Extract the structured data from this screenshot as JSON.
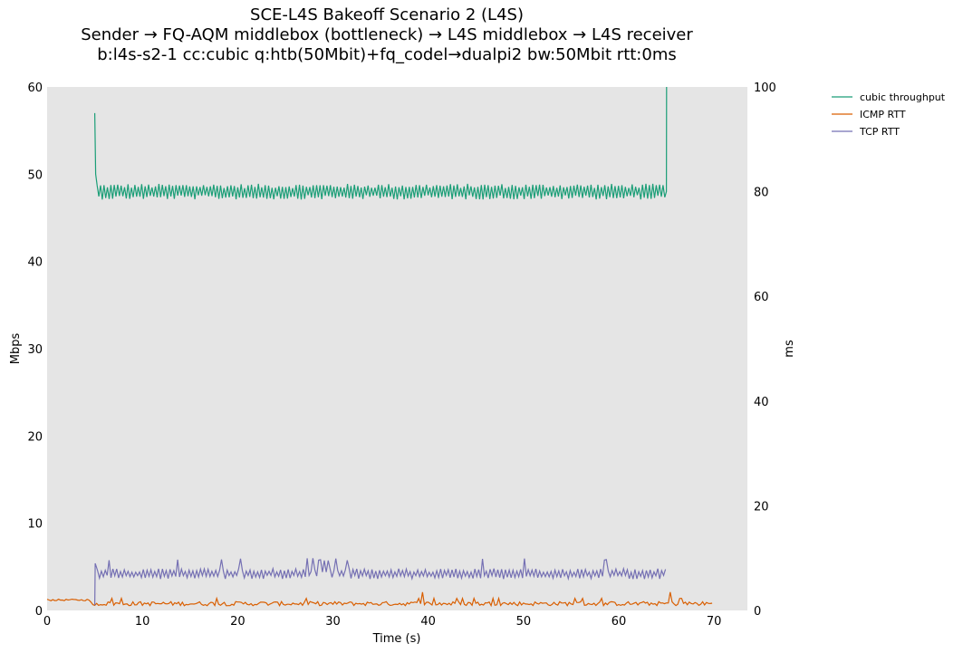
{
  "chart_data": {
    "type": "line",
    "title": [
      "SCE-L4S Bakeoff Scenario 2 (L4S)",
      "Sender → FQ-AQM middlebox (bottleneck) → L4S middlebox → L4S receiver",
      "b:l4s-s2-1 cc:cubic q:htb(50Mbit)+fq_codel→dualpi2 bw:50Mbit rtt:0ms"
    ],
    "xlabel": "Time (s)",
    "ylabel_left": "Mbps",
    "ylabel_right": "ms",
    "xlim": [
      0,
      73.5
    ],
    "ylim_left": [
      0,
      60
    ],
    "ylim_right": [
      0,
      100
    ],
    "xticks": [
      "0",
      "10",
      "20",
      "30",
      "40",
      "50",
      "60",
      "70"
    ],
    "yticks_left": [
      "0",
      "10",
      "20",
      "30",
      "40",
      "50",
      "60"
    ],
    "yticks_right": [
      "0",
      "20",
      "40",
      "60",
      "80",
      "100"
    ],
    "grid": false,
    "legend_position": "outside-top-right",
    "background": "#e5e5e5",
    "series": [
      {
        "name": "cubic throughput",
        "axis": "left",
        "color": "#1b9e77",
        "summary": {
          "start": 5.0,
          "end": 65.0,
          "initial_peak": 57,
          "mean": 48,
          "min": 47,
          "max": 49,
          "final_peak": 60
        }
      },
      {
        "name": "ICMP RTT",
        "axis": "right",
        "color": "#d95f02",
        "summary": {
          "start": 0,
          "end": 70,
          "baseline_before": 2.0,
          "mean": 1.3,
          "min": 0.9,
          "max": 2.3,
          "spike_times": [
            39.5,
            65.5
          ]
        }
      },
      {
        "name": "TCP RTT",
        "axis": "right",
        "color": "#7570b3",
        "summary": {
          "start": 5.0,
          "end": 65.0,
          "initial_peak": 9.0,
          "mean": 7.0,
          "min": 6.0,
          "max": 10.0
        }
      }
    ]
  }
}
